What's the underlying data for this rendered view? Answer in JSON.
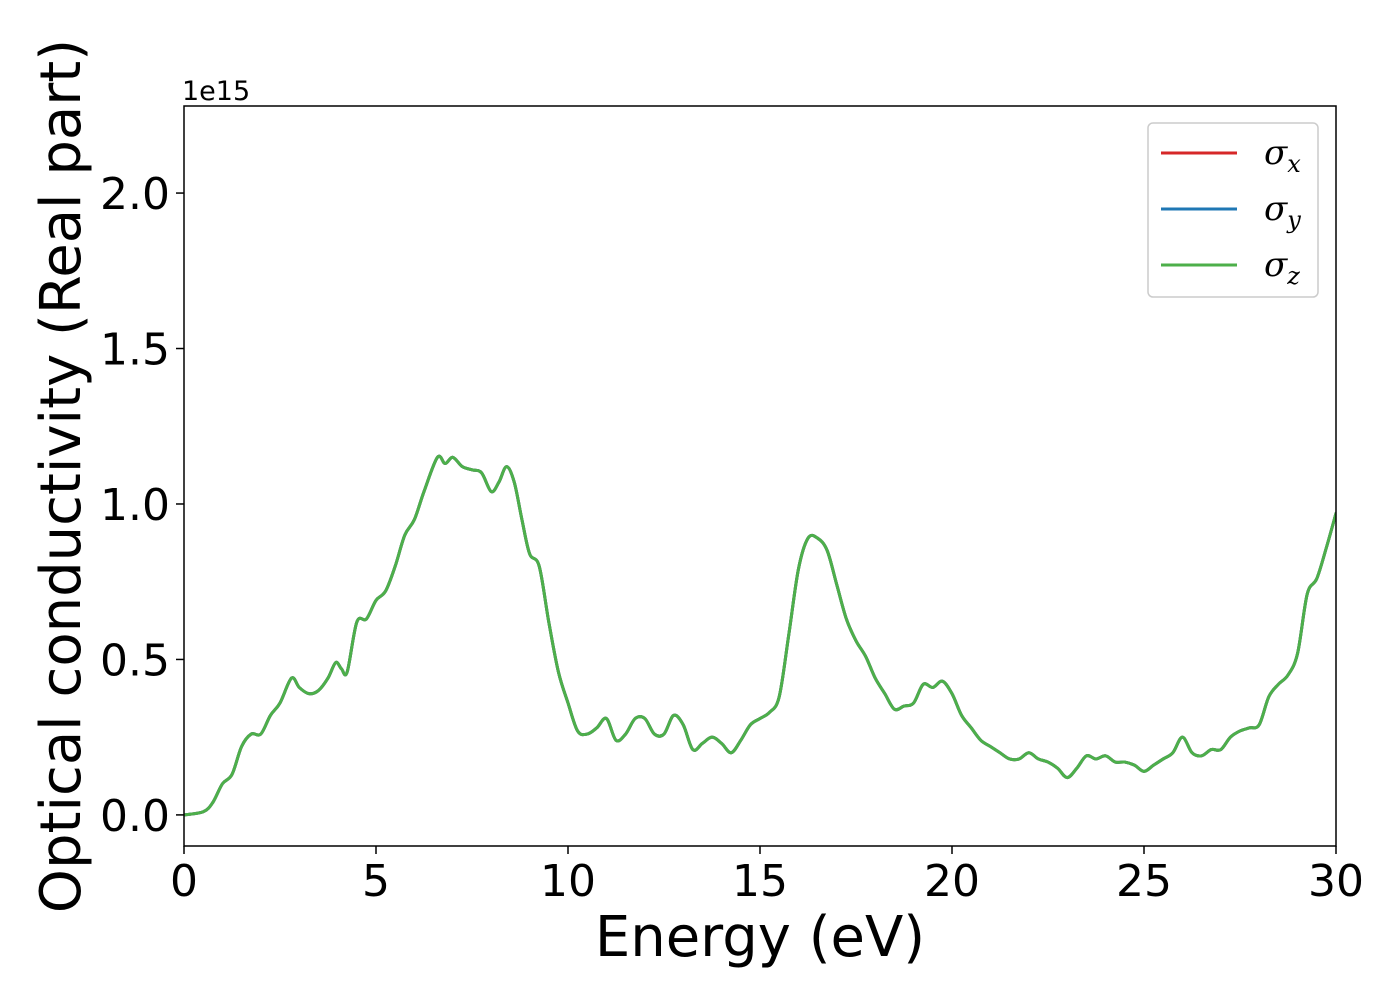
{
  "chart_data": {
    "type": "line",
    "title": "",
    "xlabel": "Energy (eV)",
    "ylabel": "Optical conductivity (Real part)",
    "y_offset_label": "1e15",
    "xlim": [
      0,
      30
    ],
    "ylim": [
      -0.1,
      2.28
    ],
    "xticks": [
      0,
      5,
      10,
      15,
      20,
      25,
      30
    ],
    "xtick_labels": [
      "0",
      "5",
      "10",
      "15",
      "20",
      "25",
      "30"
    ],
    "yticks": [
      0.0,
      0.5,
      1.0,
      1.5,
      2.0
    ],
    "ytick_labels": [
      "0.0",
      "0.5",
      "1.0",
      "1.5",
      "2.0"
    ],
    "grid": false,
    "legend_position": "top-right",
    "x": [
      0,
      0.5,
      0.75,
      1.0,
      1.25,
      1.5,
      1.75,
      2.0,
      2.25,
      2.5,
      2.8,
      3.0,
      3.25,
      3.5,
      3.75,
      3.95,
      4.1,
      4.25,
      4.5,
      4.75,
      5.0,
      5.25,
      5.5,
      5.75,
      6.0,
      6.25,
      6.6,
      6.8,
      7.0,
      7.25,
      7.5,
      7.75,
      8.0,
      8.2,
      8.4,
      8.6,
      8.8,
      9.0,
      9.25,
      9.5,
      9.75,
      10.0,
      10.25,
      10.5,
      10.75,
      11.0,
      11.25,
      11.5,
      11.75,
      12.0,
      12.25,
      12.5,
      12.75,
      13.0,
      13.25,
      13.5,
      13.75,
      14.0,
      14.25,
      14.5,
      14.75,
      15.0,
      15.25,
      15.5,
      15.75,
      16.0,
      16.25,
      16.5,
      16.75,
      17.0,
      17.25,
      17.5,
      17.75,
      18.0,
      18.25,
      18.5,
      18.75,
      19.0,
      19.25,
      19.5,
      19.75,
      20.0,
      20.25,
      20.5,
      20.75,
      21.0,
      21.25,
      21.5,
      21.75,
      22.0,
      22.25,
      22.5,
      22.75,
      23.0,
      23.25,
      23.5,
      23.75,
      24.0,
      24.25,
      24.5,
      24.75,
      25.0,
      25.25,
      25.5,
      25.75,
      26.0,
      26.25,
      26.5,
      26.75,
      27.0,
      27.25,
      27.5,
      27.75,
      28.0,
      28.25,
      28.5,
      28.75,
      29.0,
      29.25,
      29.5,
      29.75,
      30.0
    ],
    "series": [
      {
        "name": "σx",
        "color": "#d62728",
        "values": [
          0.0,
          0.01,
          0.04,
          0.1,
          0.13,
          0.22,
          0.26,
          0.26,
          0.32,
          0.36,
          0.44,
          0.41,
          0.39,
          0.4,
          0.44,
          0.49,
          0.47,
          0.46,
          0.62,
          0.63,
          0.69,
          0.72,
          0.8,
          0.9,
          0.95,
          1.04,
          1.15,
          1.13,
          1.15,
          1.12,
          1.11,
          1.1,
          1.04,
          1.07,
          1.12,
          1.07,
          0.95,
          0.84,
          0.8,
          0.62,
          0.46,
          0.36,
          0.27,
          0.26,
          0.28,
          0.31,
          0.24,
          0.26,
          0.31,
          0.31,
          0.26,
          0.26,
          0.32,
          0.29,
          0.21,
          0.23,
          0.25,
          0.23,
          0.2,
          0.24,
          0.29,
          0.31,
          0.33,
          0.38,
          0.58,
          0.79,
          0.89,
          0.89,
          0.85,
          0.74,
          0.63,
          0.56,
          0.51,
          0.44,
          0.39,
          0.34,
          0.35,
          0.36,
          0.42,
          0.41,
          0.43,
          0.39,
          0.32,
          0.28,
          0.24,
          0.22,
          0.2,
          0.18,
          0.18,
          0.2,
          0.18,
          0.17,
          0.15,
          0.12,
          0.15,
          0.19,
          0.18,
          0.19,
          0.17,
          0.17,
          0.16,
          0.14,
          0.16,
          0.18,
          0.2,
          0.25,
          0.2,
          0.19,
          0.21,
          0.21,
          0.25,
          0.27,
          0.28,
          0.29,
          0.38,
          0.42,
          0.45,
          0.52,
          0.71,
          0.76,
          0.86,
          0.97
        ]
      },
      {
        "name": "σy",
        "color": "#1f77b4",
        "values": [
          0.0,
          0.01,
          0.04,
          0.1,
          0.13,
          0.22,
          0.26,
          0.26,
          0.32,
          0.36,
          0.44,
          0.41,
          0.39,
          0.4,
          0.44,
          0.49,
          0.47,
          0.46,
          0.62,
          0.63,
          0.69,
          0.72,
          0.8,
          0.9,
          0.95,
          1.04,
          1.15,
          1.13,
          1.15,
          1.12,
          1.11,
          1.1,
          1.04,
          1.07,
          1.12,
          1.07,
          0.95,
          0.84,
          0.8,
          0.62,
          0.46,
          0.36,
          0.27,
          0.26,
          0.28,
          0.31,
          0.24,
          0.26,
          0.31,
          0.31,
          0.26,
          0.26,
          0.32,
          0.29,
          0.21,
          0.23,
          0.25,
          0.23,
          0.2,
          0.24,
          0.29,
          0.31,
          0.33,
          0.38,
          0.58,
          0.79,
          0.89,
          0.89,
          0.85,
          0.74,
          0.63,
          0.56,
          0.51,
          0.44,
          0.39,
          0.34,
          0.35,
          0.36,
          0.42,
          0.41,
          0.43,
          0.39,
          0.32,
          0.28,
          0.24,
          0.22,
          0.2,
          0.18,
          0.18,
          0.2,
          0.18,
          0.17,
          0.15,
          0.12,
          0.15,
          0.19,
          0.18,
          0.19,
          0.17,
          0.17,
          0.16,
          0.14,
          0.16,
          0.18,
          0.2,
          0.25,
          0.2,
          0.19,
          0.21,
          0.21,
          0.25,
          0.27,
          0.28,
          0.29,
          0.38,
          0.42,
          0.45,
          0.52,
          0.71,
          0.76,
          0.86,
          0.97
        ]
      },
      {
        "name": "σz",
        "color": "#4daf4a",
        "values": [
          0.0,
          0.01,
          0.04,
          0.1,
          0.13,
          0.22,
          0.26,
          0.26,
          0.32,
          0.36,
          0.44,
          0.41,
          0.39,
          0.4,
          0.44,
          0.49,
          0.47,
          0.46,
          0.62,
          0.63,
          0.69,
          0.72,
          0.8,
          0.9,
          0.95,
          1.04,
          1.15,
          1.13,
          1.15,
          1.12,
          1.11,
          1.1,
          1.04,
          1.07,
          1.12,
          1.07,
          0.95,
          0.84,
          0.8,
          0.62,
          0.46,
          0.36,
          0.27,
          0.26,
          0.28,
          0.31,
          0.24,
          0.26,
          0.31,
          0.31,
          0.26,
          0.26,
          0.32,
          0.29,
          0.21,
          0.23,
          0.25,
          0.23,
          0.2,
          0.24,
          0.29,
          0.31,
          0.33,
          0.38,
          0.58,
          0.79,
          0.89,
          0.89,
          0.85,
          0.74,
          0.63,
          0.56,
          0.51,
          0.44,
          0.39,
          0.34,
          0.35,
          0.36,
          0.42,
          0.41,
          0.43,
          0.39,
          0.32,
          0.28,
          0.24,
          0.22,
          0.2,
          0.18,
          0.18,
          0.2,
          0.18,
          0.17,
          0.15,
          0.12,
          0.15,
          0.19,
          0.18,
          0.19,
          0.17,
          0.17,
          0.16,
          0.14,
          0.16,
          0.18,
          0.2,
          0.25,
          0.2,
          0.19,
          0.21,
          0.21,
          0.25,
          0.27,
          0.28,
          0.29,
          0.38,
          0.42,
          0.45,
          0.52,
          0.71,
          0.76,
          0.86,
          0.97
        ]
      }
    ],
    "legend": [
      {
        "base": "σ",
        "sub": "x",
        "color": "#d62728"
      },
      {
        "base": "σ",
        "sub": "y",
        "color": "#1f77b4"
      },
      {
        "base": "σ",
        "sub": "z",
        "color": "#4daf4a"
      }
    ]
  }
}
